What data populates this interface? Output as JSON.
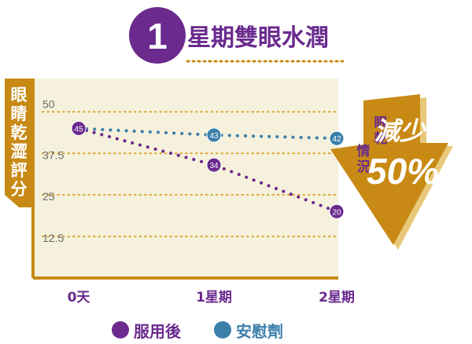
{
  "header": {
    "number": "1",
    "title": "星期雙眼水潤"
  },
  "y_axis_label_chars": [
    "眼",
    "睛",
    "乾",
    "澀",
    "評",
    "分"
  ],
  "callout": {
    "subject_chars": [
      "眼",
      "乾",
      "情",
      "況"
    ],
    "reduce": "減少",
    "percent": "50%"
  },
  "chart_data": {
    "type": "line",
    "categories": [
      "0天",
      "1星期",
      "2星期"
    ],
    "y_ticks": [
      "50",
      "37.5",
      "25",
      "12.5"
    ],
    "ylim": [
      0,
      60
    ],
    "series": [
      {
        "name": "服用後",
        "values": [
          45,
          34,
          20
        ],
        "color": "#6a2a8e"
      },
      {
        "name": "安慰劑",
        "values": [
          45,
          43,
          42
        ],
        "color": "#3b7fab"
      }
    ]
  },
  "colors": {
    "purple": "#6a2a8e",
    "blue": "#3b7fab",
    "gold": "#c88a14",
    "gold_light": "#e8b84a",
    "panel": "#f6f1dc",
    "grid": "#d8a42a"
  }
}
